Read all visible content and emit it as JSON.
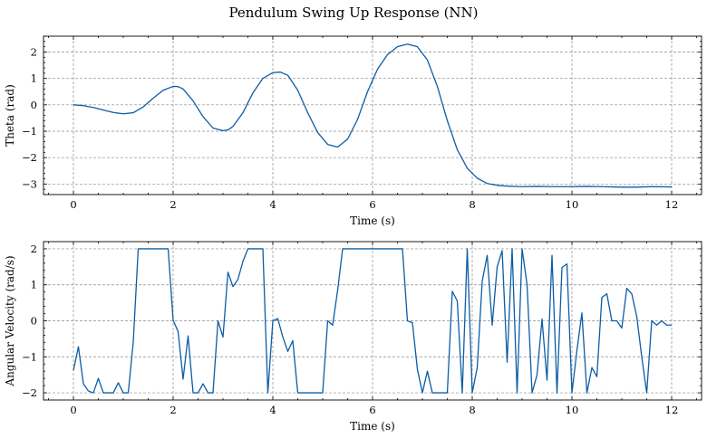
{
  "chart_data": [
    {
      "type": "line",
      "title": "Pendulum Swing Up Response (NN)",
      "xlabel": "Time (s)",
      "ylabel": "Theta (rad)",
      "xlim": [
        -0.6,
        12.6
      ],
      "ylim": [
        -3.4,
        2.6
      ],
      "xticks": [
        0,
        2,
        4,
        6,
        8,
        10,
        12
      ],
      "yticks": [
        -3,
        -2,
        -1,
        0,
        1,
        2
      ],
      "grid": true,
      "color": "#0c5da5",
      "series": [
        {
          "x": [
            0,
            0.2,
            0.4,
            0.6,
            0.8,
            1.0,
            1.2,
            1.4,
            1.6,
            1.8,
            2.0,
            2.1,
            2.2,
            2.4,
            2.6,
            2.8,
            3.0,
            3.1,
            3.2,
            3.4,
            3.6,
            3.8,
            4.0,
            4.15,
            4.3,
            4.5,
            4.7,
            4.9,
            5.1,
            5.3,
            5.5,
            5.7,
            5.9,
            6.1,
            6.3,
            6.5,
            6.7,
            6.9,
            7.1,
            7.3,
            7.5,
            7.7,
            7.9,
            8.1,
            8.3,
            8.5,
            8.7,
            9.0,
            9.3,
            9.6,
            10.0,
            10.3,
            10.6,
            11.0,
            11.3,
            11.6,
            12.0
          ],
          "y": [
            0,
            -0.03,
            -0.1,
            -0.2,
            -0.29,
            -0.34,
            -0.3,
            -0.08,
            0.25,
            0.55,
            0.7,
            0.69,
            0.6,
            0.15,
            -0.45,
            -0.88,
            -0.98,
            -0.95,
            -0.82,
            -0.3,
            0.45,
            1.0,
            1.22,
            1.24,
            1.12,
            0.55,
            -0.3,
            -1.05,
            -1.5,
            -1.6,
            -1.3,
            -0.55,
            0.5,
            1.35,
            1.9,
            2.2,
            2.3,
            2.2,
            1.7,
            0.7,
            -0.6,
            -1.7,
            -2.4,
            -2.78,
            -2.98,
            -3.05,
            -3.08,
            -3.1,
            -3.09,
            -3.1,
            -3.1,
            -3.09,
            -3.1,
            -3.12,
            -3.12,
            -3.1,
            -3.11
          ]
        }
      ]
    },
    {
      "type": "line",
      "title": "",
      "xlabel": "Time (s)",
      "ylabel": "Angular Velocity (rad/s)",
      "xlim": [
        -0.6,
        12.6
      ],
      "ylim": [
        -2.2,
        2.2
      ],
      "xticks": [
        0,
        2,
        4,
        6,
        8,
        10,
        12
      ],
      "yticks": [
        -2,
        -1,
        0,
        1,
        2
      ],
      "grid": true,
      "color": "#0c5da5",
      "series": [
        {
          "x": [
            0,
            0.1,
            0.2,
            0.3,
            0.4,
            0.5,
            0.6,
            0.7,
            0.8,
            0.9,
            1.0,
            1.1,
            1.2,
            1.3,
            1.4,
            1.5,
            1.6,
            1.7,
            1.8,
            1.9,
            2.0,
            2.1,
            2.2,
            2.3,
            2.4,
            2.5,
            2.6,
            2.7,
            2.8,
            2.9,
            3.0,
            3.1,
            3.2,
            3.3,
            3.4,
            3.5,
            3.6,
            3.7,
            3.8,
            3.9,
            4.0,
            4.1,
            4.2,
            4.3,
            4.4,
            4.5,
            4.6,
            4.7,
            4.8,
            4.9,
            5.0,
            5.1,
            5.2,
            5.3,
            5.4,
            5.5,
            5.6,
            5.7,
            5.8,
            5.9,
            6.0,
            6.1,
            6.2,
            6.3,
            6.4,
            6.5,
            6.6,
            6.7,
            6.8,
            6.9,
            7.0,
            7.1,
            7.2,
            7.3,
            7.4,
            7.5,
            7.6,
            7.7,
            7.8,
            7.9,
            8.0,
            8.1,
            8.2,
            8.3,
            8.4,
            8.5,
            8.6,
            8.7,
            8.8,
            8.9,
            9.0,
            9.1,
            9.2,
            9.3,
            9.4,
            9.5,
            9.6,
            9.7,
            9.8,
            9.9,
            10.0,
            10.1,
            10.2,
            10.3,
            10.4,
            10.5,
            10.6,
            10.7,
            10.8,
            10.9,
            11.0,
            11.1,
            11.2,
            11.3,
            11.4,
            11.5,
            11.6,
            11.7,
            11.8,
            11.9,
            12.0
          ],
          "y": [
            -1.38,
            -0.72,
            -1.75,
            -1.95,
            -2.0,
            -1.6,
            -2.0,
            -2.0,
            -2.0,
            -1.72,
            -2.0,
            -2.0,
            -0.6,
            2.0,
            2.0,
            2.0,
            2.0,
            2.0,
            2.0,
            2.0,
            0.02,
            -0.3,
            -1.62,
            -0.42,
            -2.0,
            -2.0,
            -1.75,
            -2.0,
            -2.0,
            0.0,
            -0.45,
            1.35,
            0.95,
            1.15,
            1.65,
            2.0,
            2.0,
            2.0,
            2.0,
            -2.0,
            0.0,
            0.06,
            -0.45,
            -0.85,
            -0.55,
            -2.0,
            -2.0,
            -2.0,
            -2.0,
            -2.0,
            -2.0,
            0.0,
            -0.12,
            0.85,
            2.0,
            2.0,
            2.0,
            2.0,
            2.0,
            2.0,
            2.0,
            2.0,
            2.0,
            2.0,
            2.0,
            2.0,
            2.0,
            0.0,
            -0.05,
            -1.35,
            -2.0,
            -1.4,
            -2.0,
            -2.0,
            -2.0,
            -2.0,
            0.82,
            0.55,
            -2.0,
            2.0,
            -2.0,
            -1.3,
            1.1,
            1.82,
            -0.12,
            1.5,
            1.95,
            -1.15,
            2.0,
            -2.0,
            2.0,
            1.0,
            -2.0,
            -1.5,
            0.05,
            -1.65,
            1.82,
            -2.0,
            1.48,
            1.58,
            -2.0,
            -0.82,
            0.22,
            -2.0,
            -1.3,
            -1.55,
            0.65,
            0.75,
            0.0,
            0.0,
            -0.2,
            0.9,
            0.75,
            0.12,
            -1.0,
            -2.0,
            0.0,
            -0.12,
            0.0,
            -0.12,
            -0.12
          ]
        }
      ]
    }
  ]
}
